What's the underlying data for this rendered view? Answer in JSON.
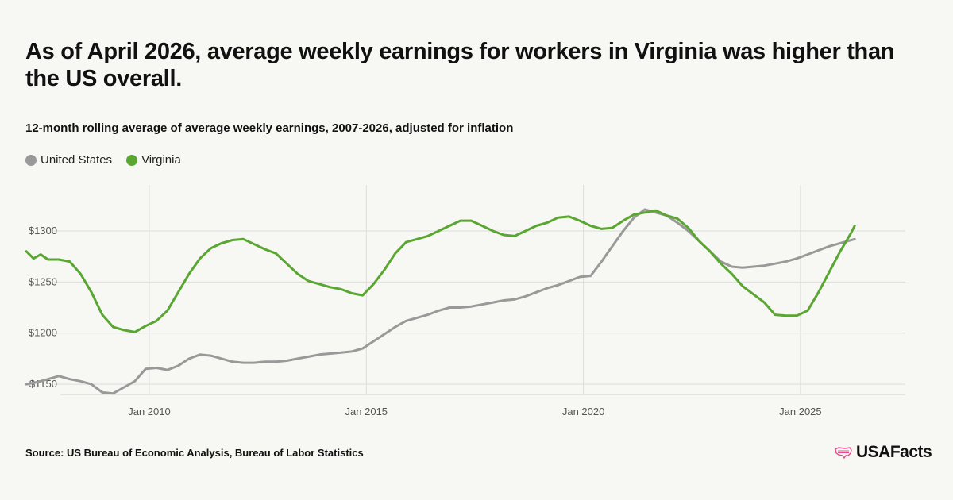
{
  "title": "As of April 2026, average weekly earnings for workers in Virginia was higher than the US overall.",
  "subtitle": "12-month rolling average of average weekly earnings, 2007-2026, adjusted for inflation",
  "source": "Source: US Bureau of Economic Analysis, Bureau of Labor Statistics",
  "brand": {
    "name": "USAFacts",
    "icon": "us-map-icon",
    "icon_color": "#e94d8d"
  },
  "colors": {
    "United States": "#999999",
    "Virginia": "#5aa632",
    "grid": "#dddddd",
    "background": "#f7f7f3"
  },
  "chart_data": {
    "type": "line",
    "title": "",
    "xlabel": "",
    "ylabel": "",
    "x_range": [
      "2007-01",
      "2027-06"
    ],
    "ylim": [
      1140,
      1345
    ],
    "y_ticks": [
      1150,
      1200,
      1250,
      1300
    ],
    "y_tick_labels": [
      "$1150",
      "$1200",
      "$1250",
      "$1300"
    ],
    "x_ticks": [
      "2010-01",
      "2015-01",
      "2020-01",
      "2025-01"
    ],
    "x_tick_labels": [
      "Jan 2010",
      "Jan 2015",
      "Jan 2020",
      "Jan 2025"
    ],
    "grid": true,
    "legend": "top-left",
    "series": [
      {
        "name": "United States",
        "color": "#999999",
        "points": [
          [
            "2007-03",
            1150
          ],
          [
            "2007-06",
            1152
          ],
          [
            "2007-09",
            1155
          ],
          [
            "2007-12",
            1158
          ],
          [
            "2008-03",
            1155
          ],
          [
            "2008-06",
            1153
          ],
          [
            "2008-09",
            1150
          ],
          [
            "2008-12",
            1142
          ],
          [
            "2009-03",
            1141
          ],
          [
            "2009-06",
            1147
          ],
          [
            "2009-09",
            1153
          ],
          [
            "2009-12",
            1165
          ],
          [
            "2010-03",
            1166
          ],
          [
            "2010-06",
            1164
          ],
          [
            "2010-09",
            1168
          ],
          [
            "2010-12",
            1175
          ],
          [
            "2011-03",
            1179
          ],
          [
            "2011-06",
            1178
          ],
          [
            "2011-09",
            1175
          ],
          [
            "2011-12",
            1172
          ],
          [
            "2012-03",
            1171
          ],
          [
            "2012-06",
            1171
          ],
          [
            "2012-09",
            1172
          ],
          [
            "2012-12",
            1172
          ],
          [
            "2013-03",
            1173
          ],
          [
            "2013-06",
            1175
          ],
          [
            "2013-09",
            1177
          ],
          [
            "2013-12",
            1179
          ],
          [
            "2014-03",
            1180
          ],
          [
            "2014-06",
            1181
          ],
          [
            "2014-09",
            1182
          ],
          [
            "2014-12",
            1185
          ],
          [
            "2015-03",
            1192
          ],
          [
            "2015-06",
            1199
          ],
          [
            "2015-09",
            1206
          ],
          [
            "2015-12",
            1212
          ],
          [
            "2016-03",
            1215
          ],
          [
            "2016-06",
            1218
          ],
          [
            "2016-09",
            1222
          ],
          [
            "2016-12",
            1225
          ],
          [
            "2017-03",
            1225
          ],
          [
            "2017-06",
            1226
          ],
          [
            "2017-09",
            1228
          ],
          [
            "2017-12",
            1230
          ],
          [
            "2018-03",
            1232
          ],
          [
            "2018-06",
            1233
          ],
          [
            "2018-09",
            1236
          ],
          [
            "2018-12",
            1240
          ],
          [
            "2019-03",
            1244
          ],
          [
            "2019-06",
            1247
          ],
          [
            "2019-09",
            1251
          ],
          [
            "2019-12",
            1255
          ],
          [
            "2020-03",
            1256
          ],
          [
            "2020-06",
            1270
          ],
          [
            "2020-09",
            1285
          ],
          [
            "2020-12",
            1300
          ],
          [
            "2021-03",
            1313
          ],
          [
            "2021-06",
            1321
          ],
          [
            "2021-09",
            1318
          ],
          [
            "2021-12",
            1315
          ],
          [
            "2022-03",
            1308
          ],
          [
            "2022-06",
            1300
          ],
          [
            "2022-09",
            1290
          ],
          [
            "2022-12",
            1280
          ],
          [
            "2023-03",
            1270
          ],
          [
            "2023-06",
            1265
          ],
          [
            "2023-09",
            1264
          ],
          [
            "2023-12",
            1265
          ],
          [
            "2024-03",
            1266
          ],
          [
            "2024-06",
            1268
          ],
          [
            "2024-09",
            1270
          ],
          [
            "2024-12",
            1273
          ],
          [
            "2025-03",
            1277
          ],
          [
            "2025-06",
            1281
          ],
          [
            "2025-09",
            1285
          ],
          [
            "2025-12",
            1288
          ],
          [
            "2026-04",
            1292
          ]
        ]
      },
      {
        "name": "Virginia",
        "color": "#5aa632",
        "points": [
          [
            "2007-03",
            1280
          ],
          [
            "2007-05",
            1273
          ],
          [
            "2007-07",
            1277
          ],
          [
            "2007-09",
            1272
          ],
          [
            "2007-12",
            1272
          ],
          [
            "2008-03",
            1270
          ],
          [
            "2008-06",
            1258
          ],
          [
            "2008-09",
            1240
          ],
          [
            "2008-12",
            1218
          ],
          [
            "2009-03",
            1206
          ],
          [
            "2009-06",
            1203
          ],
          [
            "2009-09",
            1201
          ],
          [
            "2009-12",
            1207
          ],
          [
            "2010-03",
            1212
          ],
          [
            "2010-06",
            1222
          ],
          [
            "2010-09",
            1240
          ],
          [
            "2010-12",
            1258
          ],
          [
            "2011-03",
            1273
          ],
          [
            "2011-06",
            1283
          ],
          [
            "2011-09",
            1288
          ],
          [
            "2011-12",
            1291
          ],
          [
            "2012-03",
            1292
          ],
          [
            "2012-06",
            1287
          ],
          [
            "2012-09",
            1282
          ],
          [
            "2012-12",
            1278
          ],
          [
            "2013-03",
            1268
          ],
          [
            "2013-06",
            1258
          ],
          [
            "2013-09",
            1251
          ],
          [
            "2013-12",
            1248
          ],
          [
            "2014-03",
            1245
          ],
          [
            "2014-06",
            1243
          ],
          [
            "2014-09",
            1239
          ],
          [
            "2014-12",
            1237
          ],
          [
            "2015-03",
            1248
          ],
          [
            "2015-06",
            1262
          ],
          [
            "2015-09",
            1278
          ],
          [
            "2015-12",
            1289
          ],
          [
            "2016-03",
            1292
          ],
          [
            "2016-06",
            1295
          ],
          [
            "2016-09",
            1300
          ],
          [
            "2016-12",
            1305
          ],
          [
            "2017-03",
            1310
          ],
          [
            "2017-06",
            1310
          ],
          [
            "2017-09",
            1305
          ],
          [
            "2017-12",
            1300
          ],
          [
            "2018-03",
            1296
          ],
          [
            "2018-06",
            1295
          ],
          [
            "2018-09",
            1300
          ],
          [
            "2018-12",
            1305
          ],
          [
            "2019-03",
            1308
          ],
          [
            "2019-06",
            1313
          ],
          [
            "2019-09",
            1314
          ],
          [
            "2019-12",
            1310
          ],
          [
            "2020-03",
            1305
          ],
          [
            "2020-06",
            1302
          ],
          [
            "2020-09",
            1303
          ],
          [
            "2020-12",
            1310
          ],
          [
            "2021-03",
            1316
          ],
          [
            "2021-06",
            1318
          ],
          [
            "2021-09",
            1320
          ],
          [
            "2021-12",
            1315
          ],
          [
            "2022-03",
            1312
          ],
          [
            "2022-06",
            1303
          ],
          [
            "2022-09",
            1290
          ],
          [
            "2022-12",
            1280
          ],
          [
            "2023-03",
            1268
          ],
          [
            "2023-06",
            1258
          ],
          [
            "2023-09",
            1246
          ],
          [
            "2023-12",
            1238
          ],
          [
            "2024-03",
            1230
          ],
          [
            "2024-06",
            1218
          ],
          [
            "2024-09",
            1217
          ],
          [
            "2024-12",
            1217
          ],
          [
            "2025-03",
            1222
          ],
          [
            "2025-06",
            1240
          ],
          [
            "2025-09",
            1260
          ],
          [
            "2025-12",
            1280
          ],
          [
            "2026-03",
            1298
          ],
          [
            "2026-04",
            1305
          ]
        ]
      }
    ]
  }
}
